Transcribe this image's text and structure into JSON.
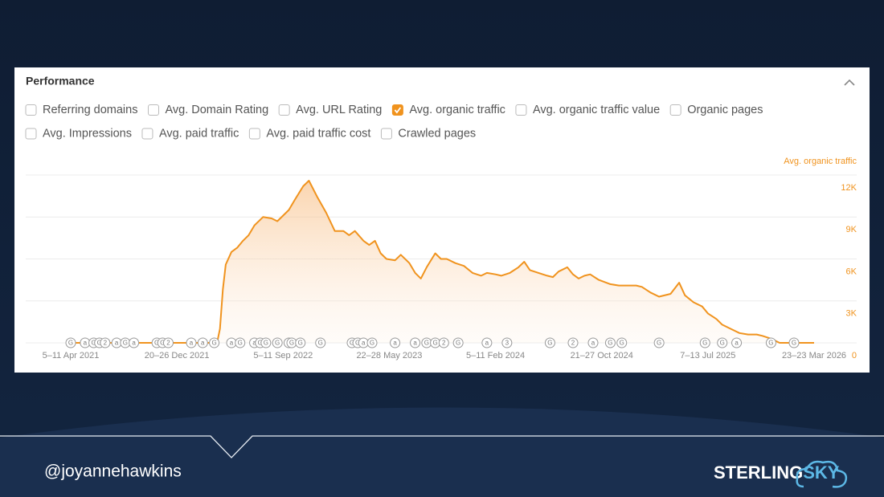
{
  "panel": {
    "title": "Performance",
    "filters": [
      [
        {
          "label": "Referring domains",
          "checked": false
        },
        {
          "label": "Avg. Domain Rating",
          "checked": false
        },
        {
          "label": "Avg. URL Rating",
          "checked": false
        },
        {
          "label": "Avg. organic traffic",
          "checked": true
        },
        {
          "label": "Avg. organic traffic value",
          "checked": false
        },
        {
          "label": "Organic pages",
          "checked": false
        }
      ],
      [
        {
          "label": "Avg. Impressions",
          "checked": false
        },
        {
          "label": "Avg. paid traffic",
          "checked": false
        },
        {
          "label": "Avg. paid traffic cost",
          "checked": false
        },
        {
          "label": "Crawled pages",
          "checked": false
        }
      ]
    ]
  },
  "chart_data": {
    "type": "area",
    "x": [
      0,
      51,
      52,
      53,
      54,
      56,
      58,
      60,
      62,
      64,
      67,
      70,
      72,
      73,
      76,
      78,
      81,
      83,
      86,
      89,
      92,
      95,
      97,
      99,
      102,
      104,
      106,
      108,
      110,
      113,
      115,
      118,
      120,
      122,
      124,
      127,
      129,
      131,
      134,
      137,
      140,
      143,
      145,
      148,
      150,
      153,
      156,
      158,
      160,
      163,
      166,
      168,
      170,
      173,
      175,
      177,
      179,
      181,
      184,
      188,
      191,
      194,
      197,
      199,
      202,
      205,
      209,
      212,
      214,
      217,
      220,
      222,
      225,
      227,
      230,
      233,
      236,
      239,
      241,
      244,
      247,
      250,
      259
    ],
    "series": [
      {
        "name": "Avg. organic traffic",
        "color": "#f0931e",
        "values": [
          0,
          0,
          1000,
          3800,
          5600,
          6500,
          6800,
          7300,
          7700,
          8400,
          9000,
          8900,
          8700,
          8900,
          9500,
          10200,
          11200,
          11600,
          10400,
          9300,
          8000,
          8000,
          7700,
          8000,
          7300,
          7000,
          7300,
          6400,
          6000,
          5900,
          6300,
          5700,
          5000,
          4600,
          5400,
          6400,
          6000,
          6000,
          5700,
          5500,
          5000,
          4800,
          5000,
          4900,
          4800,
          5000,
          5400,
          5800,
          5200,
          5000,
          4800,
          4700,
          5100,
          5400,
          4900,
          4600,
          4800,
          4900,
          4500,
          4200,
          4100,
          4100,
          4100,
          4000,
          3600,
          3300,
          3500,
          4300,
          3400,
          2900,
          2600,
          2100,
          1700,
          1300,
          1000,
          700,
          600,
          600,
          500,
          300,
          0,
          0,
          0
        ]
      }
    ],
    "xlim": [
      0,
      259
    ],
    "xticks": [
      {
        "value": 0,
        "label": "5–11 Apr 2021"
      },
      {
        "value": 37,
        "label": "20–26 Dec 2021"
      },
      {
        "value": 74,
        "label": "5–11 Sep 2022"
      },
      {
        "value": 111,
        "label": "22–28 May 2023"
      },
      {
        "value": 148,
        "label": "5–11 Feb 2024"
      },
      {
        "value": 185,
        "label": "21–27 Oct 2024"
      },
      {
        "value": 222,
        "label": "7–13 Jul 2025"
      },
      {
        "value": 259,
        "label": "23–23 Mar 2026"
      }
    ],
    "ylim": [
      0,
      12000
    ],
    "yticks": [
      0,
      {
        "value": 3000,
        "label": "3K"
      },
      {
        "value": 6000,
        "label": "6K"
      },
      {
        "value": 9000,
        "label": "9K"
      },
      {
        "value": 12000,
        "label": "12K"
      }
    ],
    "grid": true,
    "annotations": [
      {
        "x": 0,
        "label": "G"
      },
      {
        "x": 5,
        "label": "a"
      },
      {
        "x": 8,
        "label": "G"
      },
      {
        "x": 10,
        "label": "G"
      },
      {
        "x": 12,
        "label": "2"
      },
      {
        "x": 16,
        "label": "a"
      },
      {
        "x": 19,
        "label": "G"
      },
      {
        "x": 22,
        "label": "a"
      },
      {
        "x": 30,
        "label": "G"
      },
      {
        "x": 32,
        "label": "G"
      },
      {
        "x": 34,
        "label": "2"
      },
      {
        "x": 42,
        "label": "a"
      },
      {
        "x": 46,
        "label": "a"
      },
      {
        "x": 50,
        "label": "G"
      },
      {
        "x": 56,
        "label": "a"
      },
      {
        "x": 59,
        "label": "G"
      },
      {
        "x": 64,
        "label": "a"
      },
      {
        "x": 66,
        "label": "G"
      },
      {
        "x": 68,
        "label": "G"
      },
      {
        "x": 72,
        "label": "G"
      },
      {
        "x": 76,
        "label": "a"
      },
      {
        "x": 77,
        "label": "G"
      },
      {
        "x": 80,
        "label": "G"
      },
      {
        "x": 87,
        "label": "G"
      },
      {
        "x": 98,
        "label": "G"
      },
      {
        "x": 100,
        "label": "G"
      },
      {
        "x": 102,
        "label": "a"
      },
      {
        "x": 105,
        "label": "G"
      },
      {
        "x": 113,
        "label": "a"
      },
      {
        "x": 120,
        "label": "a"
      },
      {
        "x": 124,
        "label": "G"
      },
      {
        "x": 127,
        "label": "G"
      },
      {
        "x": 130,
        "label": "2"
      },
      {
        "x": 135,
        "label": "G"
      },
      {
        "x": 145,
        "label": "a"
      },
      {
        "x": 152,
        "label": "3"
      },
      {
        "x": 167,
        "label": "G"
      },
      {
        "x": 175,
        "label": "2"
      },
      {
        "x": 182,
        "label": "a"
      },
      {
        "x": 188,
        "label": "G"
      },
      {
        "x": 192,
        "label": "G"
      },
      {
        "x": 205,
        "label": "G"
      },
      {
        "x": 221,
        "label": "G"
      },
      {
        "x": 227,
        "label": "G"
      },
      {
        "x": 232,
        "label": "a"
      },
      {
        "x": 244,
        "label": "G"
      },
      {
        "x": 252,
        "label": "G"
      }
    ]
  },
  "footer": {
    "handle": "@joyannehawkins",
    "logo": [
      "STERLING",
      "SKY"
    ]
  }
}
